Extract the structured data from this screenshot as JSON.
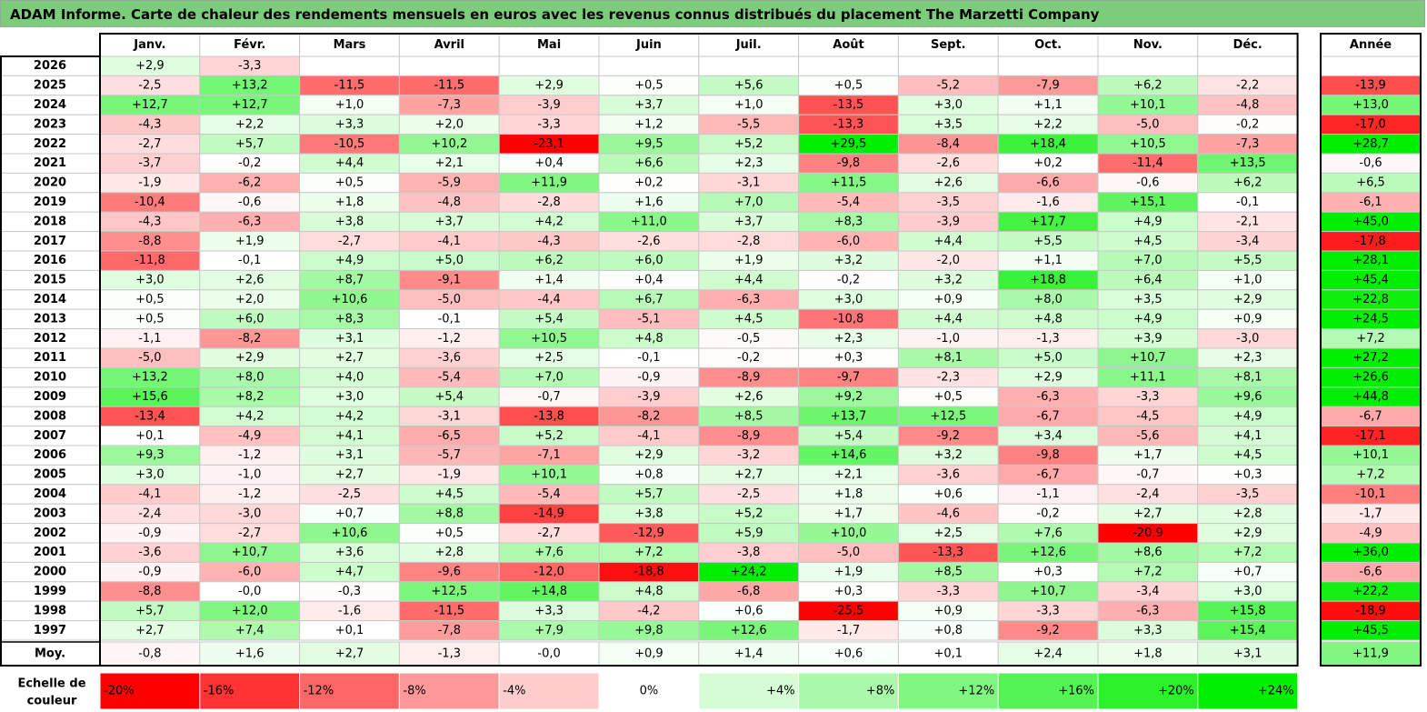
{
  "title": "ADAM Informe. Carte de chaleur des rendements mensuels en euros avec les revenus connus distribués du placement The Marzetti Company",
  "chart_data": {
    "type": "heatmap",
    "months": [
      "Janv.",
      "Févr.",
      "Mars",
      "Avril",
      "Mai",
      "Juin",
      "Juil.",
      "Août",
      "Sept.",
      "Oct.",
      "Nov.",
      "Déc."
    ],
    "year_header": "Année",
    "rows": [
      {
        "year": "2026",
        "values": [
          "+2,9",
          "-3,3",
          "",
          "",
          "",
          "",
          "",
          "",
          "",
          "",
          "",
          ""
        ],
        "annual": ""
      },
      {
        "year": "2025",
        "values": [
          "-2,5",
          "+13,2",
          "-11,5",
          "-11,5",
          "+2,9",
          "+0,5",
          "+5,6",
          "+0,5",
          "-5,2",
          "-7,9",
          "+6,2",
          "-2,2"
        ],
        "annual": "-13,9"
      },
      {
        "year": "2024",
        "values": [
          "+12,7",
          "+12,7",
          "+1,0",
          "-7,3",
          "-3,9",
          "+3,7",
          "+1,0",
          "-13,5",
          "+3,0",
          "+1,1",
          "+10,1",
          "-4,8"
        ],
        "annual": "+13,0"
      },
      {
        "year": "2023",
        "values": [
          "-4,3",
          "+2,2",
          "+3,3",
          "+2,0",
          "-3,3",
          "+1,2",
          "-5,5",
          "-13,3",
          "+3,5",
          "+2,2",
          "-5,0",
          "-0,2"
        ],
        "annual": "-17,0"
      },
      {
        "year": "2022",
        "values": [
          "-2,7",
          "+5,7",
          "-10,5",
          "+10,2",
          "-23,1",
          "+9,5",
          "+5,2",
          "+29,5",
          "-8,4",
          "+18,4",
          "+10,5",
          "-7,3"
        ],
        "annual": "+28,7"
      },
      {
        "year": "2021",
        "values": [
          "-3,7",
          "-0,2",
          "+4,4",
          "+2,1",
          "+0,4",
          "+6,6",
          "+2,3",
          "-9,8",
          "-2,6",
          "+0,2",
          "-11,4",
          "+13,5"
        ],
        "annual": "-0,6"
      },
      {
        "year": "2020",
        "values": [
          "-1,9",
          "-6,2",
          "+0,5",
          "-5,9",
          "+11,9",
          "+0,2",
          "-3,1",
          "+11,5",
          "+2,6",
          "-6,6",
          "-0,6",
          "+6,2"
        ],
        "annual": "+6,5"
      },
      {
        "year": "2019",
        "values": [
          "-10,4",
          "-0,6",
          "+1,8",
          "-4,8",
          "-2,8",
          "+1,6",
          "+7,0",
          "-5,4",
          "-3,5",
          "-1,6",
          "+15,1",
          "-0,1"
        ],
        "annual": "-6,1"
      },
      {
        "year": "2018",
        "values": [
          "-4,3",
          "-6,3",
          "+3,8",
          "+3,7",
          "+4,2",
          "+11,0",
          "+3,7",
          "+8,3",
          "-3,9",
          "+17,7",
          "+4,9",
          "-2,1"
        ],
        "annual": "+45,0"
      },
      {
        "year": "2017",
        "values": [
          "-8,8",
          "+1,9",
          "-2,7",
          "-4,1",
          "-4,3",
          "-2,6",
          "-2,8",
          "-6,0",
          "+4,4",
          "+5,5",
          "+4,5",
          "-3,4"
        ],
        "annual": "-17,8"
      },
      {
        "year": "2016",
        "values": [
          "-11,8",
          "-0,1",
          "+4,9",
          "+5,0",
          "+6,2",
          "+6,0",
          "+1,9",
          "+3,2",
          "-2,0",
          "+1,1",
          "+7,0",
          "+5,5"
        ],
        "annual": "+28,1"
      },
      {
        "year": "2015",
        "values": [
          "+3,0",
          "+2,6",
          "+8,7",
          "-9,1",
          "+1,4",
          "+0,4",
          "+4,4",
          "-0,2",
          "+3,2",
          "+18,8",
          "+6,4",
          "+1,0"
        ],
        "annual": "+45,4"
      },
      {
        "year": "2014",
        "values": [
          "+0,5",
          "+2,0",
          "+10,6",
          "-5,0",
          "-4,4",
          "+6,7",
          "-6,3",
          "+3,0",
          "+0,9",
          "+8,0",
          "+3,5",
          "+2,9"
        ],
        "annual": "+22,8"
      },
      {
        "year": "2013",
        "values": [
          "+0,5",
          "+6,0",
          "+8,3",
          "-0,1",
          "+5,4",
          "-5,1",
          "+4,5",
          "-10,8",
          "+4,4",
          "+4,8",
          "+4,9",
          "+0,9"
        ],
        "annual": "+24,5"
      },
      {
        "year": "2012",
        "values": [
          "-1,1",
          "-8,2",
          "+3,1",
          "-1,2",
          "+10,5",
          "+4,8",
          "-0,5",
          "+2,3",
          "-1,0",
          "-1,3",
          "+3,9",
          "-3,0"
        ],
        "annual": "+7,2"
      },
      {
        "year": "2011",
        "values": [
          "-5,0",
          "+2,9",
          "+2,7",
          "-3,6",
          "+2,5",
          "-0,1",
          "-0,2",
          "+0,3",
          "+8,1",
          "+5,0",
          "+10,7",
          "+2,3"
        ],
        "annual": "+27,2"
      },
      {
        "year": "2010",
        "values": [
          "+13,2",
          "+8,0",
          "+4,0",
          "-5,4",
          "+7,0",
          "-0,9",
          "-8,9",
          "-9,7",
          "-2,3",
          "+2,9",
          "+11,1",
          "+8,1"
        ],
        "annual": "+26,6"
      },
      {
        "year": "2009",
        "values": [
          "+15,6",
          "+8,2",
          "+3,0",
          "+5,4",
          "-0,7",
          "-3,9",
          "+2,6",
          "+9,2",
          "+0,5",
          "-6,3",
          "-3,3",
          "+9,6"
        ],
        "annual": "+44,8"
      },
      {
        "year": "2008",
        "values": [
          "-13,4",
          "+4,2",
          "+4,2",
          "-3,1",
          "-13,8",
          "-8,2",
          "+8,5",
          "+13,7",
          "+12,5",
          "-6,7",
          "-4,5",
          "+4,9"
        ],
        "annual": "-6,7"
      },
      {
        "year": "2007",
        "values": [
          "+0,1",
          "-4,9",
          "+4,1",
          "-6,5",
          "+5,2",
          "-4,1",
          "-8,9",
          "+5,4",
          "-9,2",
          "+3,4",
          "-5,6",
          "+4,1"
        ],
        "annual": "-17,1"
      },
      {
        "year": "2006",
        "values": [
          "+9,3",
          "-1,2",
          "+3,1",
          "-5,7",
          "-7,1",
          "+2,9",
          "-3,2",
          "+14,6",
          "+3,2",
          "-9,8",
          "+1,7",
          "+4,5"
        ],
        "annual": "+10,1"
      },
      {
        "year": "2005",
        "values": [
          "+3,0",
          "-1,0",
          "+2,7",
          "-1,9",
          "+10,1",
          "+0,8",
          "+2,7",
          "+2,1",
          "-3,6",
          "-6,7",
          "-0,7",
          "+0,3"
        ],
        "annual": "+7,2"
      },
      {
        "year": "2004",
        "values": [
          "-4,1",
          "-1,2",
          "-2,5",
          "+4,5",
          "-5,4",
          "+5,7",
          "-2,5",
          "+1,8",
          "+0,6",
          "-1,1",
          "-2,4",
          "-3,5"
        ],
        "annual": "-10,1"
      },
      {
        "year": "2003",
        "values": [
          "-2,4",
          "-3,0",
          "+0,7",
          "+8,8",
          "-14,9",
          "+3,8",
          "+5,2",
          "+1,7",
          "-4,6",
          "-0,2",
          "+2,7",
          "+2,8"
        ],
        "annual": "-1,7"
      },
      {
        "year": "2002",
        "values": [
          "-0,9",
          "-2,7",
          "+10,6",
          "+0,5",
          "-2,7",
          "-12,9",
          "+5,9",
          "+10,0",
          "+2,5",
          "+7,6",
          "-20,9",
          "+2,9"
        ],
        "annual": "-4,9"
      },
      {
        "year": "2001",
        "values": [
          "-3,6",
          "+10,7",
          "+3,6",
          "+2,8",
          "+7,6",
          "+7,2",
          "-3,8",
          "-5,0",
          "-13,3",
          "+12,6",
          "+8,6",
          "+7,2"
        ],
        "annual": "+36,0"
      },
      {
        "year": "2000",
        "values": [
          "-0,9",
          "-6,0",
          "+4,7",
          "-9,6",
          "-12,0",
          "-18,8",
          "+24,2",
          "+1,9",
          "+8,5",
          "+0,3",
          "+7,2",
          "+0,7"
        ],
        "annual": "-6,6"
      },
      {
        "year": "1999",
        "values": [
          "-8,8",
          "-0,0",
          "-0,3",
          "+12,5",
          "+14,8",
          "+4,8",
          "-6,8",
          "+0,3",
          "-3,3",
          "+10,7",
          "-3,4",
          "+3,0"
        ],
        "annual": "+22,2"
      },
      {
        "year": "1998",
        "values": [
          "+5,7",
          "+12,0",
          "-1,6",
          "-11,5",
          "+3,3",
          "-4,2",
          "+0,6",
          "-25,5",
          "+0,9",
          "-3,3",
          "-6,3",
          "+15,8"
        ],
        "annual": "-18,9"
      },
      {
        "year": "1997",
        "values": [
          "+2,7",
          "+7,4",
          "+0,1",
          "-7,8",
          "+7,9",
          "+9,8",
          "+12,6",
          "-1,7",
          "+0,8",
          "-9,2",
          "+3,3",
          "+15,4"
        ],
        "annual": "+45,5"
      }
    ],
    "average": {
      "label": "Moy.",
      "values": [
        "-0,8",
        "+1,6",
        "+2,7",
        "-1,3",
        "-0,0",
        "+0,9",
        "+1,4",
        "+0,6",
        "+0,1",
        "+2,4",
        "+1,8",
        "+3,1"
      ],
      "annual": "+11,9"
    },
    "scale": {
      "label_line1": "Echelle de",
      "label_line2": "couleur",
      "steps": [
        {
          "label": "-20%",
          "value": -20
        },
        {
          "label": "-16%",
          "value": -16
        },
        {
          "label": "-12%",
          "value": -12
        },
        {
          "label": "-8%",
          "value": -8
        },
        {
          "label": "-4%",
          "value": -4
        },
        {
          "label": "0%",
          "value": 0
        },
        {
          "label": "+4%",
          "value": 4
        },
        {
          "label": "+8%",
          "value": 8
        },
        {
          "label": "+12%",
          "value": 12
        },
        {
          "label": "+16%",
          "value": 16
        },
        {
          "label": "+20%",
          "value": 20
        },
        {
          "label": "+24%",
          "value": 24
        }
      ]
    }
  }
}
